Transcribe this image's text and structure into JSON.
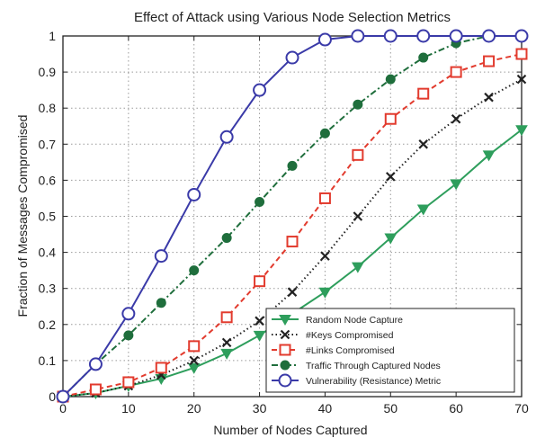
{
  "chart_data": {
    "type": "line",
    "title": "Effect of Attack using Various Node Selection Metrics",
    "xlabel": "Number of Nodes Captured",
    "ylabel": "Fraction of Messages Compromised",
    "xlim": [
      0,
      70
    ],
    "ylim": [
      0,
      1
    ],
    "xticks": [
      0,
      10,
      20,
      30,
      40,
      50,
      60,
      70
    ],
    "yticks": [
      0,
      0.1,
      0.2,
      0.3,
      0.4,
      0.5,
      0.6,
      0.7,
      0.8,
      0.9,
      1
    ],
    "ytick_labels": [
      "0",
      "0.1",
      "0.2",
      "0.3",
      "0.4",
      "0.5",
      "0.6",
      "0.7",
      "0.8",
      "0.9",
      "1"
    ],
    "xtick_labels": [
      "0",
      "10",
      "20",
      "30",
      "40",
      "50",
      "60",
      "70"
    ],
    "grid": true,
    "legend_position": "bottom-right",
    "x": [
      0,
      5,
      10,
      15,
      20,
      25,
      30,
      35,
      40,
      45,
      50,
      55,
      60,
      65,
      70
    ],
    "series": [
      {
        "name": "Random Node Capture",
        "color": "#2e9e5c",
        "marker": "triangle-down",
        "line": "solid",
        "values": [
          0,
          0.01,
          0.03,
          0.05,
          0.08,
          0.12,
          0.17,
          0.23,
          0.29,
          0.36,
          0.44,
          0.52,
          0.59,
          0.67,
          0.74
        ]
      },
      {
        "name": "#Keys Compromised",
        "color": "#222222",
        "marker": "x",
        "line": "dotted",
        "values": [
          0,
          0.01,
          0.03,
          0.06,
          0.1,
          0.15,
          0.21,
          0.29,
          0.39,
          0.5,
          0.61,
          0.7,
          0.77,
          0.83,
          0.88
        ]
      },
      {
        "name": "#Links Compromised",
        "color": "#e23b2e",
        "marker": "square",
        "line": "dashed",
        "values": [
          0,
          0.02,
          0.04,
          0.08,
          0.14,
          0.22,
          0.32,
          0.43,
          0.55,
          0.67,
          0.77,
          0.84,
          0.9,
          0.93,
          0.95
        ]
      },
      {
        "name": "Traffic Through Captured Nodes",
        "color": "#1f6e3c",
        "marker": "circle-filled",
        "line": "dashdot",
        "values": [
          0,
          0.09,
          0.17,
          0.26,
          0.35,
          0.44,
          0.54,
          0.64,
          0.73,
          0.81,
          0.88,
          0.94,
          0.98,
          1.0,
          1.0
        ]
      },
      {
        "name": "Vulnerability (Resistance) Metric",
        "color": "#3a3aa8",
        "marker": "circle-open",
        "line": "solid",
        "values": [
          0,
          0.09,
          0.23,
          0.39,
          0.56,
          0.72,
          0.85,
          0.94,
          0.99,
          1.0,
          1.0,
          1.0,
          1.0,
          1.0,
          1.0
        ]
      }
    ]
  }
}
